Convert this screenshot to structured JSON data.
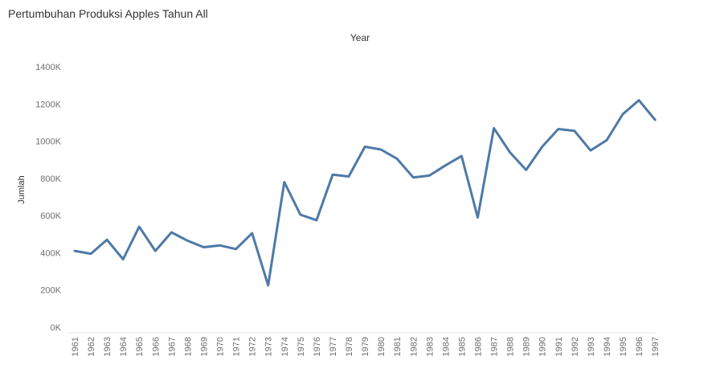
{
  "title": "Pertumbuhan Produksi Apples Tahun All",
  "chart_data": {
    "type": "line",
    "title": "Pertumbuhan Produksi Apples Tahun All",
    "column_header": "Year",
    "xlabel": "",
    "ylabel": "Jumlah",
    "ylim": [
      0,
      1400000
    ],
    "yticks": [
      0,
      200000,
      400000,
      600000,
      800000,
      1000000,
      1200000,
      1400000
    ],
    "ytick_labels": [
      "0K",
      "200K",
      "400K",
      "600K",
      "800K",
      "1000K",
      "1200K",
      "1400K"
    ],
    "grid": false,
    "color": "#4e79a7",
    "categories": [
      "1961",
      "1962",
      "1963",
      "1964",
      "1965",
      "1966",
      "1967",
      "1968",
      "1969",
      "1970",
      "1971",
      "1972",
      "1973",
      "1974",
      "1975",
      "1976",
      "1977",
      "1978",
      "1979",
      "1980",
      "1981",
      "1982",
      "1983",
      "1984",
      "1985",
      "1986",
      "1987",
      "1988",
      "1989",
      "1990",
      "1991",
      "1992",
      "1993",
      "1994",
      "1995",
      "1996",
      "1997"
    ],
    "values": [
      410000,
      395000,
      470000,
      365000,
      540000,
      410000,
      510000,
      465000,
      430000,
      440000,
      420000,
      505000,
      225000,
      780000,
      605000,
      575000,
      820000,
      810000,
      970000,
      955000,
      905000,
      805000,
      815000,
      870000,
      920000,
      590000,
      1070000,
      940000,
      845000,
      970000,
      1065000,
      1055000,
      950000,
      1005000,
      1145000,
      1220000,
      1115000
    ]
  }
}
